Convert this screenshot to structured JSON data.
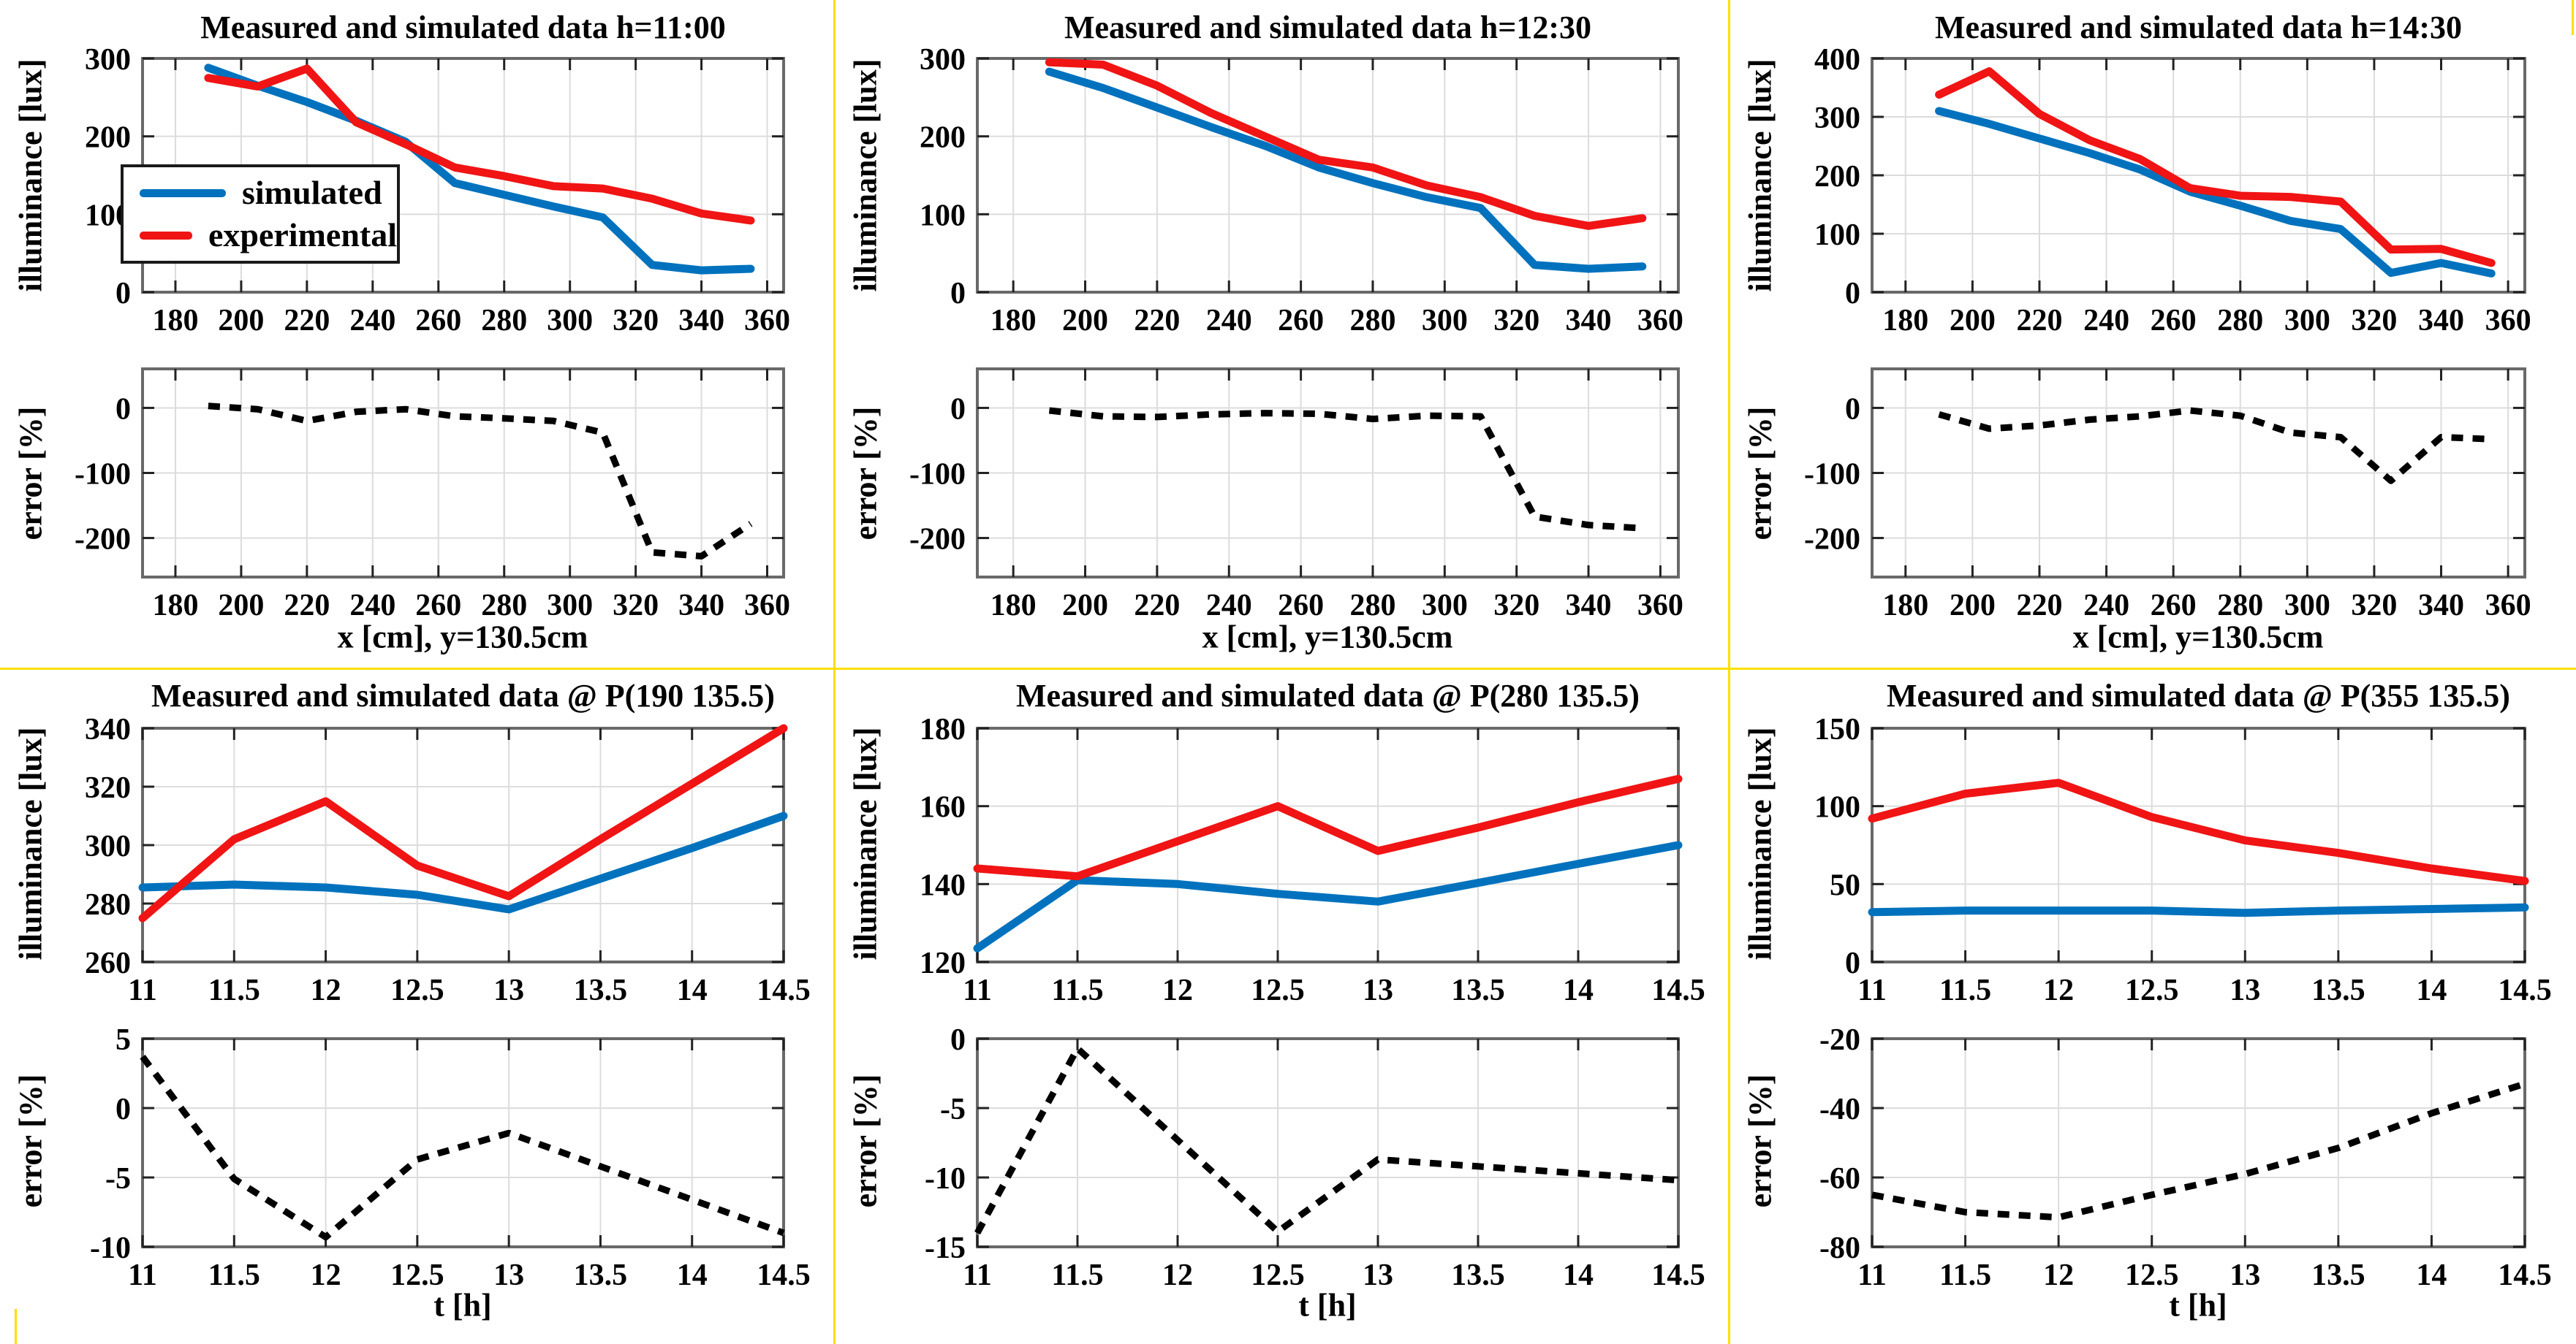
{
  "figure": {
    "background": "#ffffff",
    "divider_color": "#FFDF00",
    "grid_color": "#DCDCDC",
    "box_color": "#696969",
    "error_line_color": "#000000"
  },
  "legend": {
    "items": [
      {
        "label": "simulated",
        "color": "#0072BD"
      },
      {
        "label": "experimental",
        "color": "#F01414"
      }
    ]
  },
  "chart_data": [
    {
      "type": "line",
      "title": "Measured and simulated data h=11:00",
      "x": [
        190,
        205,
        220,
        235,
        250,
        265,
        280,
        295,
        310,
        325,
        340,
        355
      ],
      "xlim": [
        170,
        365
      ],
      "xticks": [
        180,
        200,
        220,
        240,
        260,
        280,
        300,
        320,
        340,
        360
      ],
      "top": {
        "ylabel": "illuminance  [lux]",
        "ylim": [
          0,
          300
        ],
        "yticks": [
          0,
          100,
          200,
          300
        ],
        "series": [
          {
            "name": "simulated",
            "values": [
              288,
              265,
              244,
              220,
              193,
              140,
              125,
              110,
              96,
              35,
              28,
              30
            ]
          },
          {
            "name": "experimental",
            "values": [
              275,
              264,
              287,
              218,
              190,
              160,
              149,
              136,
              133,
              120,
              101,
              92
            ]
          }
        ]
      },
      "bottom": {
        "ylabel": "error  [%]",
        "xlabel": "x [cm], y=130.5cm",
        "ylim": [
          -260,
          60
        ],
        "yticks": [
          0,
          -100,
          -200
        ],
        "values": [
          3,
          -2,
          -20,
          -6,
          -2,
          -13,
          -16,
          -20,
          -38,
          -222,
          -228,
          -178
        ]
      }
    },
    {
      "type": "line",
      "title": "Measured and simulated data h=12:30",
      "x": [
        190,
        205,
        220,
        235,
        250,
        265,
        280,
        295,
        310,
        325,
        340,
        355
      ],
      "xlim": [
        170,
        365
      ],
      "xticks": [
        180,
        200,
        220,
        240,
        260,
        280,
        300,
        320,
        340,
        360
      ],
      "top": {
        "ylabel": "illuminance  [lux]",
        "ylim": [
          0,
          300
        ],
        "yticks": [
          0,
          100,
          200,
          300
        ],
        "series": [
          {
            "name": "simulated",
            "values": [
              283,
              262,
              237,
              212,
              188,
              160,
              140,
              122,
              108,
              35,
              30,
              33
            ]
          },
          {
            "name": "experimental",
            "values": [
              295,
              292,
              265,
              230,
              200,
              170,
              160,
              137,
              122,
              98,
              85,
              95
            ]
          }
        ]
      },
      "bottom": {
        "ylabel": "error  [%]",
        "xlabel": "x [cm], y=130.5cm",
        "ylim": [
          -260,
          60
        ],
        "yticks": [
          0,
          -100,
          -200
        ],
        "values": [
          -4,
          -13,
          -14,
          -10,
          -8,
          -9,
          -17,
          -12,
          -13,
          -167,
          -180,
          -185
        ]
      }
    },
    {
      "type": "line",
      "title": "Measured and simulated data h=14:30",
      "x": [
        190,
        205,
        220,
        235,
        250,
        265,
        280,
        295,
        310,
        325,
        340,
        355
      ],
      "xlim": [
        170,
        365
      ],
      "xticks": [
        180,
        200,
        220,
        240,
        260,
        280,
        300,
        320,
        340,
        360
      ],
      "top": {
        "ylabel": "illuminance  [lux]",
        "ylim": [
          0,
          400
        ],
        "yticks": [
          0,
          100,
          200,
          300,
          400
        ],
        "series": [
          {
            "name": "simulated",
            "values": [
              310,
              288,
              263,
              238,
              210,
              172,
              148,
              122,
              108,
              33,
              50,
              32
            ]
          },
          {
            "name": "experimental",
            "values": [
              338,
              378,
              305,
              260,
              228,
              178,
              165,
              163,
              155,
              73,
              74,
              50
            ]
          }
        ]
      },
      "bottom": {
        "ylabel": "error  [%]",
        "xlabel": "x [cm], y=130.5cm",
        "ylim": [
          -260,
          60
        ],
        "yticks": [
          0,
          -100,
          -200
        ],
        "values": [
          -10,
          -32,
          -27,
          -18,
          -13,
          -4,
          -12,
          -38,
          -45,
          -112,
          -45,
          -48
        ]
      }
    },
    {
      "type": "line",
      "title": "Measured and simulated data @ P(190 135.5)",
      "x": [
        11,
        11.5,
        12,
        12.5,
        13,
        13.5,
        14,
        14.5
      ],
      "xlim": [
        11,
        14.5
      ],
      "xticks": [
        11,
        11.5,
        12,
        12.5,
        13,
        13.5,
        14,
        14.5
      ],
      "top": {
        "ylabel": "illuminance  [lux]",
        "ylim": [
          260,
          340
        ],
        "yticks": [
          260,
          280,
          300,
          320,
          340
        ],
        "series": [
          {
            "name": "simulated",
            "values": [
              285.5,
              286.5,
              285.5,
              283,
              278,
              288.5,
              299,
              310
            ]
          },
          {
            "name": "experimental",
            "values": [
              275,
              302,
              315,
              293,
              282.5,
              302,
              321,
              340
            ]
          }
        ]
      },
      "bottom": {
        "ylabel": "error  [%]",
        "xlabel": "t [h]",
        "ylim": [
          -10,
          5
        ],
        "yticks": [
          5,
          0,
          -5,
          -10
        ],
        "values": [
          3.7,
          -5.1,
          -9.3,
          -3.7,
          -1.8,
          -4.2,
          -6.6,
          -9
        ]
      }
    },
    {
      "type": "line",
      "title": "Measured and simulated data @ P(280 135.5)",
      "x": [
        11,
        11.5,
        12,
        12.5,
        13,
        13.5,
        14,
        14.5
      ],
      "xlim": [
        11,
        14.5
      ],
      "xticks": [
        11,
        11.5,
        12,
        12.5,
        13,
        13.5,
        14,
        14.5
      ],
      "top": {
        "ylabel": "illuminance  [lux]",
        "ylim": [
          120,
          180
        ],
        "yticks": [
          120,
          140,
          160,
          180
        ],
        "series": [
          {
            "name": "simulated",
            "values": [
              123.5,
              141,
              140,
              137.5,
              135.5,
              140.3,
              145.2,
              150
            ]
          },
          {
            "name": "experimental",
            "values": [
              144,
              142,
              151,
              160,
              148.5,
              154.5,
              161,
              167
            ]
          }
        ]
      },
      "bottom": {
        "ylabel": "error  [%]",
        "xlabel": "t [h]",
        "ylim": [
          -15,
          0
        ],
        "yticks": [
          0,
          -5,
          -10,
          -15
        ],
        "values": [
          -14,
          -0.7,
          -7.3,
          -13.9,
          -8.7,
          -9.2,
          -9.7,
          -10.2
        ]
      }
    },
    {
      "type": "line",
      "title": "Measured and simulated data @ P(355 135.5)",
      "x": [
        11,
        11.5,
        12,
        12.5,
        13,
        13.5,
        14,
        14.5
      ],
      "xlim": [
        11,
        14.5
      ],
      "xticks": [
        11,
        11.5,
        12,
        12.5,
        13,
        13.5,
        14,
        14.5
      ],
      "top": {
        "ylabel": "illuminance  [lux]",
        "ylim": [
          0,
          150
        ],
        "yticks": [
          0,
          50,
          100,
          150
        ],
        "series": [
          {
            "name": "simulated",
            "values": [
              32,
              33,
              33,
              33,
              31.5,
              33,
              34,
              35
            ]
          },
          {
            "name": "experimental",
            "values": [
              92,
              108,
              115,
              93,
              78,
              70,
              60,
              52
            ]
          }
        ]
      },
      "bottom": {
        "ylabel": "error  [%]",
        "xlabel": "t [h]",
        "ylim": [
          -80,
          -20
        ],
        "yticks": [
          -20,
          -40,
          -60,
          -80
        ],
        "values": [
          -65,
          -70,
          -71.5,
          -65,
          -59,
          -51.5,
          -41.5,
          -33
        ]
      }
    }
  ]
}
